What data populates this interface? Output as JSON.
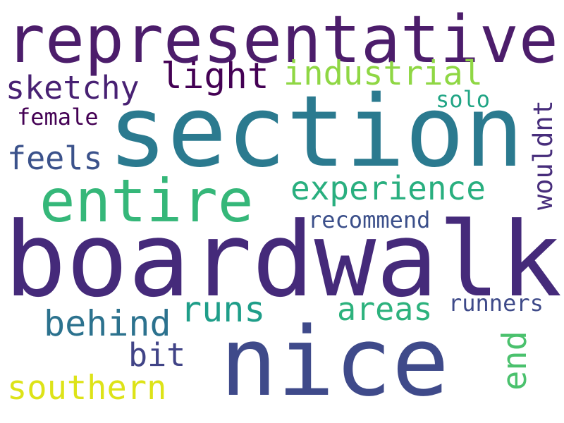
{
  "words": [
    {
      "text": "representative",
      "color": "#4c1d6b"
    },
    {
      "text": "section",
      "color": "#2b7a8f"
    },
    {
      "text": "boardwalk",
      "color": "#452a7a"
    },
    {
      "text": "nice",
      "color": "#3f4a8a"
    },
    {
      "text": "entire",
      "color": "#35b779"
    },
    {
      "text": "light",
      "color": "#440154"
    },
    {
      "text": "industrial",
      "color": "#8fd744"
    },
    {
      "text": "sketchy",
      "color": "#482173"
    },
    {
      "text": "solo",
      "color": "#21a585"
    },
    {
      "text": "female",
      "color": "#440154"
    },
    {
      "text": "feels",
      "color": "#3b528b"
    },
    {
      "text": "experience",
      "color": "#29af7f"
    },
    {
      "text": "wouldnt",
      "color": "#472d7b"
    },
    {
      "text": "recommend",
      "color": "#3b4f8a"
    },
    {
      "text": "behind",
      "color": "#2c728e"
    },
    {
      "text": "runs",
      "color": "#1f9e89"
    },
    {
      "text": "areas",
      "color": "#2db27d"
    },
    {
      "text": "runners",
      "color": "#3e4a89"
    },
    {
      "text": "end",
      "color": "#4ac16d"
    },
    {
      "text": "bit",
      "color": "#414487"
    },
    {
      "text": "southern",
      "color": "#dde318"
    }
  ]
}
